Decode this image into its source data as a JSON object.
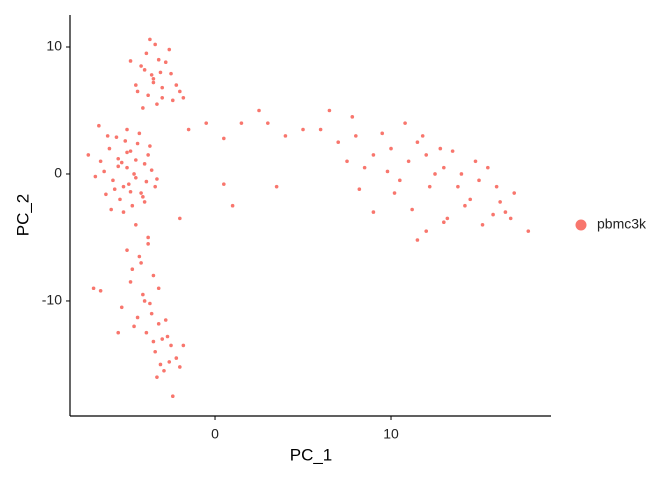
{
  "chart_data": {
    "type": "scatter",
    "x_label": "PC_1",
    "y_label": "PC_2",
    "xlim": [
      -8.24,
      19.09
    ],
    "ylim": [
      -19.06,
      12.52
    ],
    "xticks": [
      0,
      10
    ],
    "yticks": [
      -10,
      0,
      10
    ],
    "legend": "right",
    "series": [
      {
        "name": "pbmc3k",
        "color": "#F8766D",
        "x": [
          -5.0,
          -5.5,
          -4.5,
          -6.0,
          -4.0,
          -5.2,
          -4.8,
          -5.8,
          -4.2,
          -6.3,
          -5.1,
          -4.6,
          -5.4,
          -3.8,
          -6.1,
          -4.9,
          -5.3,
          -4.4,
          -5.7,
          -3.9,
          -5.0,
          -4.7,
          -6.5,
          -4.1,
          -5.6,
          -3.6,
          -5.9,
          -4.3,
          -6.8,
          -3.4,
          -5.2,
          -4.5,
          -4.8,
          -5.5,
          -3.7,
          -6.2,
          -4.0,
          -5.0,
          -3.3,
          -6.6,
          -3.5,
          -4.0,
          -3.0,
          -2.5,
          -4.5,
          -3.2,
          -3.8,
          -2.8,
          -4.2,
          -3.4,
          -2.2,
          -3.6,
          -4.8,
          -3.0,
          -2.0,
          -3.9,
          -3.3,
          -2.6,
          -4.4,
          -3.1,
          -3.7,
          -2.4,
          -3.5,
          -4.1,
          -1.8,
          -4.5,
          -3.8,
          -5.0,
          -4.2,
          -3.5,
          -4.8,
          -3.2,
          -4.0,
          -5.3,
          -3.6,
          -4.3,
          -2.8,
          -4.6,
          -3.9,
          -3.0,
          -4.1,
          -2.5,
          -3.4,
          -4.7,
          -3.1,
          -2.7,
          -3.7,
          -2.2,
          -3.3,
          -4.4,
          -2.9,
          -3.5,
          -2.4,
          -3.2,
          -2.6,
          -1.8,
          -2.0,
          -5.5,
          -6.5,
          -3.8,
          6.0,
          7.0,
          8.0,
          9.0,
          10.0,
          11.0,
          12.0,
          13.0,
          14.0,
          15.0,
          16.0,
          17.0,
          7.5,
          8.5,
          9.5,
          10.5,
          11.5,
          12.5,
          13.5,
          14.5,
          15.5,
          16.5,
          10.2,
          11.2,
          12.2,
          13.2,
          14.2,
          15.2,
          9.8,
          12.8,
          8.2,
          11.8,
          13.8,
          16.2,
          17.8,
          10.8,
          14.8,
          12.0,
          9.0,
          15.8,
          6.5,
          7.8,
          11.5,
          13.0,
          16.8,
          -1.5,
          -0.5,
          0.5,
          1.5,
          2.5,
          3.0,
          4.0,
          5.0,
          3.5,
          0.5,
          1.0,
          -2.0,
          -7.2,
          -6.9
        ],
        "values": [
          0.5,
          1.2,
          -0.3,
          2.0,
          0.8,
          -1.0,
          1.8,
          -0.5,
          -1.5,
          0.2,
          2.6,
          0.0,
          -2.0,
          1.5,
          3.0,
          -0.8,
          0.9,
          2.4,
          -1.2,
          -0.6,
          3.5,
          -2.5,
          1.0,
          -1.8,
          2.9,
          0.3,
          -2.8,
          3.2,
          -0.2,
          -1.0,
          -3.0,
          1.1,
          -1.4,
          0.6,
          2.2,
          -1.6,
          -2.2,
          1.7,
          -0.4,
          3.8,
          7.5,
          8.2,
          6.8,
          7.9,
          7.0,
          9.0,
          6.2,
          8.8,
          8.5,
          10.2,
          7.0,
          7.8,
          8.9,
          6.0,
          6.5,
          9.5,
          5.5,
          9.8,
          6.5,
          8.0,
          10.6,
          5.8,
          7.2,
          5.2,
          6.0,
          -4.0,
          -5.0,
          -6.0,
          -7.0,
          -8.0,
          -8.5,
          -9.0,
          -10.0,
          -10.5,
          -11.0,
          -6.5,
          -11.5,
          -12.0,
          -12.5,
          -13.0,
          -9.5,
          -13.5,
          -14.0,
          -7.5,
          -15.0,
          -12.8,
          -10.2,
          -14.5,
          -16.0,
          -11.3,
          -15.5,
          -13.2,
          -17.5,
          -11.8,
          -14.8,
          -13.5,
          -15.2,
          -12.5,
          -9.2,
          -5.5,
          3.5,
          2.5,
          3.0,
          1.5,
          2.0,
          1.0,
          1.5,
          0.5,
          0.0,
          -0.5,
          -1.0,
          -1.5,
          1.0,
          0.5,
          3.2,
          -0.5,
          2.5,
          0.0,
          1.8,
          -2.0,
          0.5,
          -3.0,
          -1.5,
          -2.8,
          -1.0,
          -3.5,
          -2.5,
          -4.0,
          0.2,
          2.0,
          -1.2,
          3.0,
          -1.0,
          -2.2,
          -4.5,
          4.0,
          1.0,
          -4.5,
          -3.0,
          -3.2,
          5.0,
          4.5,
          -5.2,
          -3.8,
          -3.5,
          3.5,
          4.0,
          2.8,
          4.0,
          5.0,
          4.0,
          3.0,
          3.5,
          -1.0,
          -0.8,
          -2.5,
          -3.5,
          1.5,
          -9.0
        ]
      }
    ]
  }
}
